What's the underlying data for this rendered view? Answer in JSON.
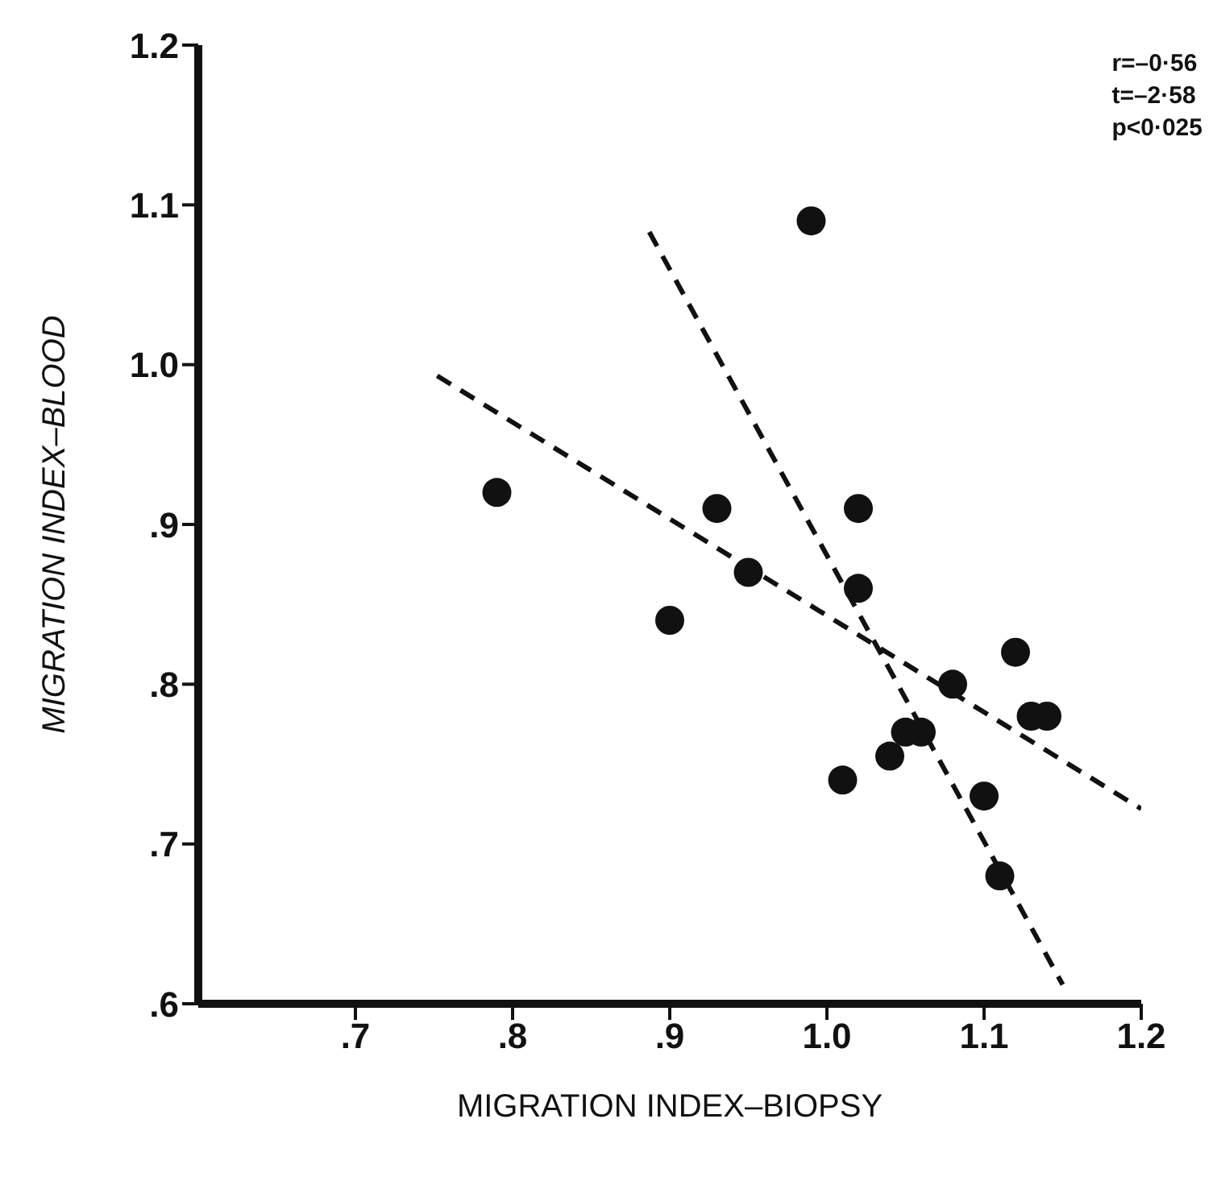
{
  "chart_data": {
    "type": "scatter",
    "xlabel": "MIGRATION INDEX–BIOPSY",
    "ylabel": "MIGRATION INDEX–BLOOD",
    "xlim": [
      0.6,
      1.2
    ],
    "ylim": [
      0.6,
      1.2
    ],
    "xticks": [
      {
        "value": 0.7,
        "label": ".7"
      },
      {
        "value": 0.8,
        "label": ".8"
      },
      {
        "value": 0.9,
        "label": ".9"
      },
      {
        "value": 1.0,
        "label": "1.0"
      },
      {
        "value": 1.1,
        "label": "1.1"
      },
      {
        "value": 1.2,
        "label": "1.2"
      }
    ],
    "yticks": [
      {
        "value": 0.6,
        "label": ".6"
      },
      {
        "value": 0.7,
        "label": ".7"
      },
      {
        "value": 0.8,
        "label": ".8"
      },
      {
        "value": 0.9,
        "label": ".9"
      },
      {
        "value": 1.0,
        "label": "1.0"
      },
      {
        "value": 1.1,
        "label": "1.1"
      },
      {
        "value": 1.2,
        "label": "1.2"
      }
    ],
    "grid": false,
    "annotations": [
      "r=–0·56",
      "t=–2·58",
      "p<0·025"
    ],
    "series": [
      {
        "color": "#111111",
        "marker": "circle",
        "x": [
          0.79,
          0.9,
          0.93,
          0.95,
          0.99,
          1.02,
          1.02,
          1.01,
          1.04,
          1.05,
          1.06,
          1.08,
          1.1,
          1.11,
          1.12,
          1.13,
          1.14
        ],
        "values": [
          0.92,
          0.84,
          0.91,
          0.87,
          1.09,
          0.91,
          0.86,
          0.74,
          0.755,
          0.77,
          0.77,
          0.8,
          0.73,
          0.68,
          0.82,
          0.78,
          0.78
        ]
      },
      {
        "type": "line",
        "color": "#111111",
        "marker": "none",
        "line_style": "dashed",
        "x": [
          0.752,
          1.2
        ],
        "values": [
          0.993,
          0.722
        ]
      },
      {
        "type": "line",
        "color": "#111111",
        "marker": "none",
        "line_style": "dashed",
        "x": [
          0.887,
          1.15
        ],
        "values": [
          1.083,
          0.612
        ]
      }
    ]
  }
}
